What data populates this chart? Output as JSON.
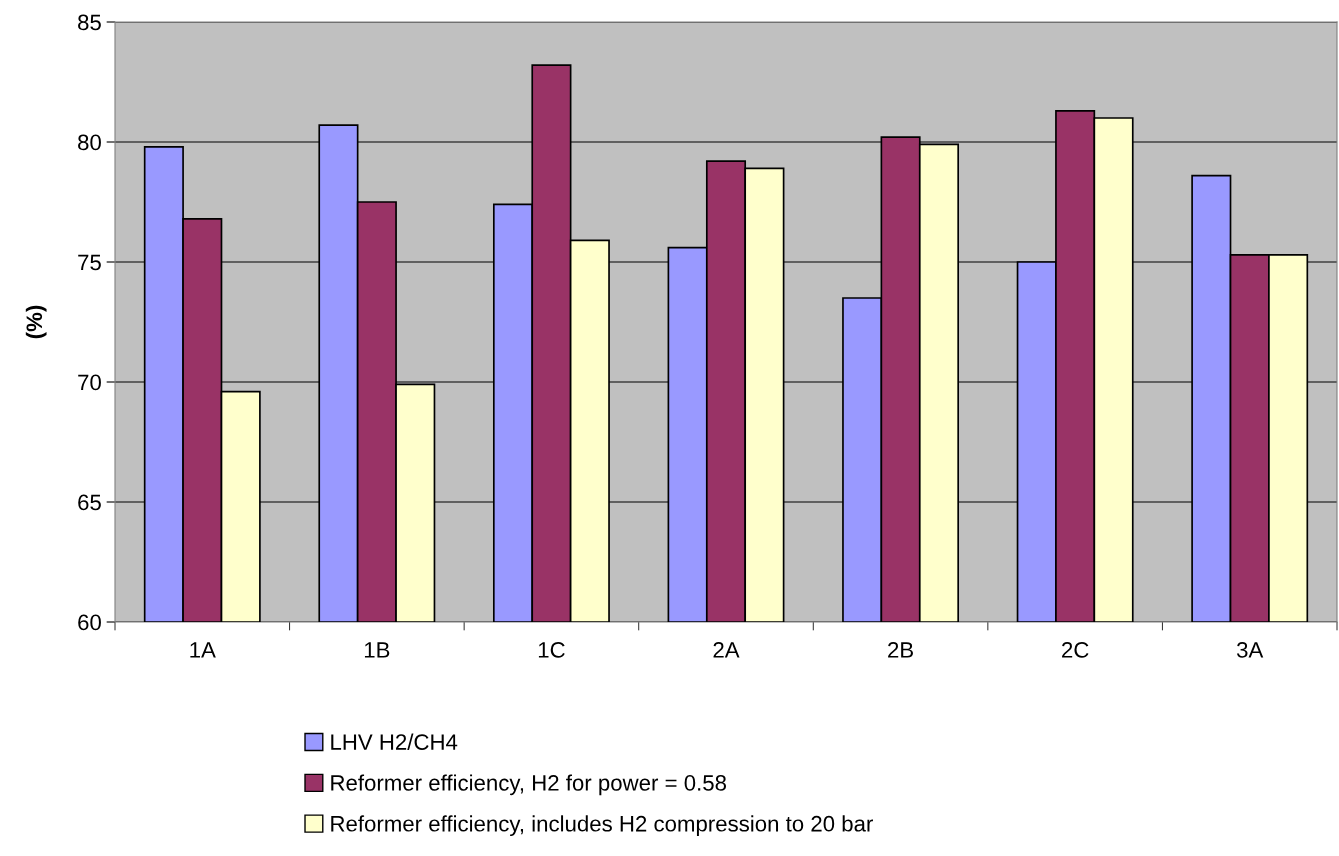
{
  "chart_data": {
    "type": "bar",
    "ylabel": "(%)",
    "categories": [
      "1A",
      "1B",
      "1C",
      "2A",
      "2B",
      "2C",
      "3A"
    ],
    "series": [
      {
        "name": "LHV H2/CH4",
        "color": "#9999ff",
        "values": [
          79.8,
          80.7,
          77.4,
          75.6,
          73.5,
          75.0,
          78.6
        ]
      },
      {
        "name": "Reformer efficiency, H2 for power = 0.58",
        "color": "#993366",
        "values": [
          76.8,
          77.5,
          83.2,
          79.2,
          80.2,
          81.3,
          75.3
        ]
      },
      {
        "name": "Reformer efficiency, includes H2 compression to 20 bar",
        "color": "#ffffcc",
        "values": [
          69.6,
          69.9,
          75.9,
          78.9,
          79.9,
          81.0,
          75.3
        ]
      }
    ],
    "ylim": [
      60,
      85
    ],
    "yticks": [
      60,
      65,
      70,
      75,
      80,
      85
    ],
    "grid": "y",
    "legend": "bottom"
  }
}
